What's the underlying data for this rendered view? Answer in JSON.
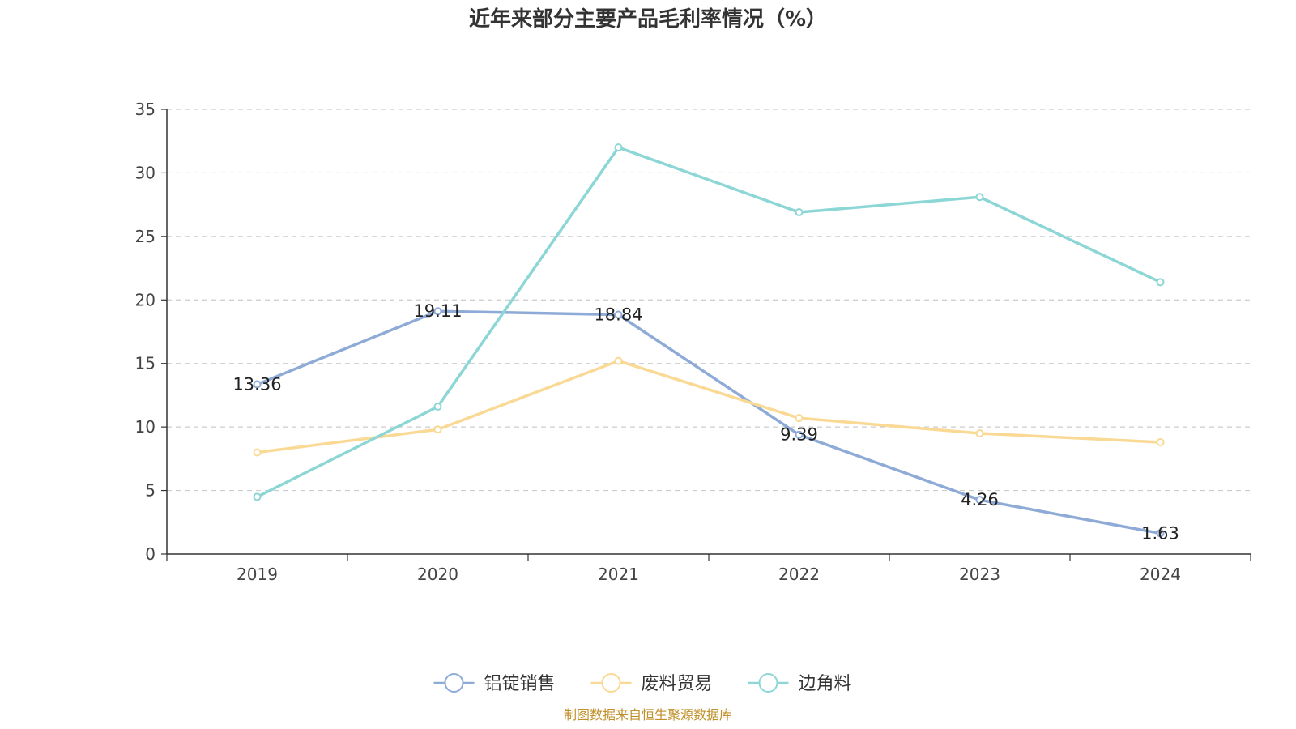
{
  "chart_data": {
    "type": "line",
    "title": "近年来部分主要产品毛利率情况（%）",
    "categories": [
      "2019",
      "2020",
      "2021",
      "2022",
      "2023",
      "2024"
    ],
    "ylim": [
      0,
      35
    ],
    "yticks": [
      0,
      5,
      10,
      15,
      20,
      25,
      30,
      35
    ],
    "grid": true,
    "legend_position": "bottom",
    "series": [
      {
        "name": "铝锭销售",
        "color": "#8eaad6",
        "values": [
          13.36,
          19.11,
          18.84,
          9.39,
          4.26,
          1.63
        ],
        "labels": [
          "13.36",
          "19.11",
          "18.84",
          "9.39",
          "4.26",
          "1.63"
        ]
      },
      {
        "name": "废料贸易",
        "color": "#f9d994",
        "values": [
          8.0,
          9.8,
          15.2,
          10.7,
          9.5,
          8.8
        ]
      },
      {
        "name": "边角料",
        "color": "#8dd6d6",
        "values": [
          4.5,
          11.6,
          32.0,
          26.9,
          28.1,
          21.4
        ]
      }
    ],
    "source": "制图数据来自恒生聚源数据库"
  }
}
